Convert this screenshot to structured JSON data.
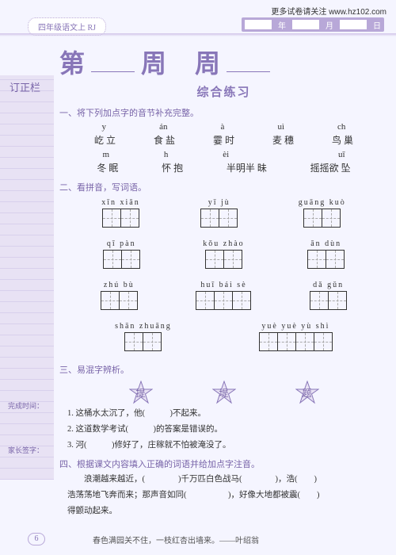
{
  "header": {
    "url_prefix": "更多试卷请关注 ",
    "url": "www.hz102.com",
    "bookmark": "四年级语文上 RJ",
    "date_labels": {
      "year": "年",
      "month": "月",
      "day": "日"
    }
  },
  "sidebar": {
    "title": "订正栏",
    "note1": "完成时间：",
    "note2": "家长签字："
  },
  "title": {
    "char1": "第",
    "char2": "周",
    "char3": "周",
    "subtitle": "综合练习"
  },
  "sec1": {
    "h": "一、将下列加点字的音节补充完整。",
    "pr1": [
      "y",
      "án",
      "à",
      "uì",
      "ch"
    ],
    "hr1": [
      "屹 立",
      "食 盐",
      "霎 时",
      "麦 穗",
      "鸟 巢"
    ],
    "pr2": [
      "m",
      "h",
      "èi",
      "",
      "uī"
    ],
    "hr2": [
      "冬 眠",
      "怀 抱",
      "半明半 昧",
      "",
      "摇摇欲 坠"
    ]
  },
  "sec2": {
    "h": "二、看拼音，写词语。",
    "rows": [
      [
        {
          "p": "xīn xiān",
          "n": 2
        },
        {
          "p": "yī jù",
          "n": 2
        },
        {
          "p": "guāng kuò",
          "n": 2
        }
      ],
      [
        {
          "p": "qī pàn",
          "n": 2
        },
        {
          "p": "kǒu zhào",
          "n": 2
        },
        {
          "p": "ān dùn",
          "n": 2
        }
      ],
      [
        {
          "p": "zhú bù",
          "n": 2
        },
        {
          "p": "huī bái sè",
          "n": 3
        },
        {
          "p": "dǎ gǔn",
          "n": 2
        }
      ],
      [
        {
          "p": "shān zhuāng",
          "n": 2
        },
        {
          "p": "yuè yuè yù shì",
          "n": 4
        }
      ]
    ]
  },
  "sec3": {
    "h": "三、易混字辨析。",
    "stars": [
      "提",
      "堤",
      "题"
    ],
    "q1": "1. 这桶水太沉了，他(　　　)不起来。",
    "q2": "2. 这道数学考试(　　　)的答案是错误的。",
    "q3": "3. 河(　　　)修好了，庄稼就不怕被淹没了。"
  },
  "sec4": {
    "h": "四、根据课文内容填入正确的词语并给加点字注音。",
    "line1": "　　浪潮越来越近，(　　　　)千万匹白色战马(　　　　)，浩(　　)",
    "line2": "浩荡荡地飞奔而来；那声音如同(　　　　　)，好像大地都被震(　　)",
    "line3": "得颤动起来。"
  },
  "footer": {
    "page": "6",
    "quote": "春色满园关不住，一枝红杏出墙来。——叶绍翁"
  },
  "colors": {
    "accent": "#8876b8"
  }
}
